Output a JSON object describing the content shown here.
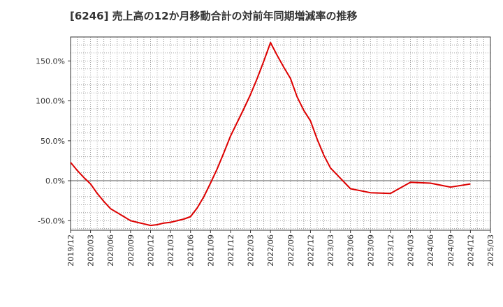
{
  "chart_data": {
    "type": "line",
    "title": "[6246]  売上高の12か月移動合計の対前年同期増減率の推移",
    "xlabel": "",
    "ylabel": "",
    "ylim": [
      -62,
      180
    ],
    "grid": true,
    "line_color": "#dd0000",
    "x_ticks": [
      "2019/12",
      "2020/03",
      "2020/06",
      "2020/09",
      "2020/12",
      "2021/03",
      "2021/06",
      "2021/09",
      "2021/12",
      "2022/03",
      "2022/06",
      "2022/09",
      "2022/12",
      "2023/03",
      "2023/06",
      "2023/09",
      "2023/12",
      "2024/03",
      "2024/06",
      "2024/09",
      "2024/12",
      "2025/03"
    ],
    "y_ticks": [
      {
        "value": 150,
        "label": "150.0%"
      },
      {
        "value": 100,
        "label": "100.0%"
      },
      {
        "value": 50,
        "label": "50.0%"
      },
      {
        "value": 0,
        "label": "0.0%"
      },
      {
        "value": -50,
        "label": "-50.0%"
      }
    ],
    "series": [
      {
        "name": "対前年同期増減率",
        "x": [
          "2019/12",
          "2020/01",
          "2020/02",
          "2020/03",
          "2020/04",
          "2020/05",
          "2020/06",
          "2020/07",
          "2020/08",
          "2020/09",
          "2020/10",
          "2020/11",
          "2020/12",
          "2021/01",
          "2021/02",
          "2021/03",
          "2021/04",
          "2021/05",
          "2021/06",
          "2021/07",
          "2021/08",
          "2021/09",
          "2021/10",
          "2021/11",
          "2021/12",
          "2022/01",
          "2022/02",
          "2022/03",
          "2022/04",
          "2022/05",
          "2022/06",
          "2022/07",
          "2022/08",
          "2022/09",
          "2022/10",
          "2022/11",
          "2022/12",
          "2023/01",
          "2023/02",
          "2023/03",
          "2023/06",
          "2023/09",
          "2023/12",
          "2024/03",
          "2024/06",
          "2024/09",
          "2024/12"
        ],
        "values": [
          23,
          13,
          4,
          -4,
          -16,
          -26,
          -35,
          -40,
          -45,
          -50,
          -52,
          -54,
          -56,
          -55,
          -53,
          -52,
          -50,
          -48,
          -45,
          -34,
          -20,
          -3,
          15,
          35,
          56,
          73,
          90,
          108,
          128,
          150,
          173,
          157,
          142,
          128,
          105,
          88,
          75,
          52,
          32,
          16,
          -10,
          -15,
          -16,
          -2,
          -3,
          -8,
          -4
        ]
      }
    ]
  }
}
